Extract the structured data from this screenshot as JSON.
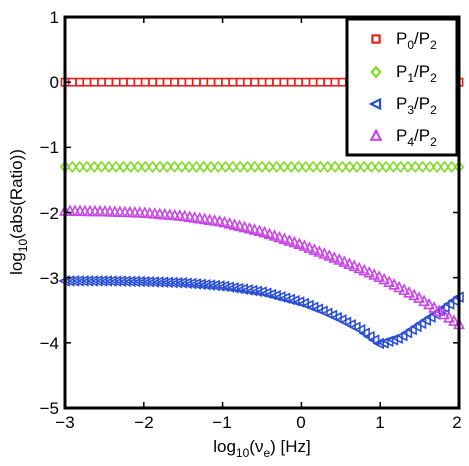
{
  "chart_data": {
    "type": "scatter",
    "xlabel": {
      "base": "log",
      "sub": "10",
      "open": "(ν",
      "sub2": "e",
      "close": ") [Hz]"
    },
    "ylabel": {
      "base": "log",
      "sub": "10",
      "rest": "(abs(Ratio))"
    },
    "xlim": [
      -3,
      2
    ],
    "ylim": [
      -5,
      1
    ],
    "x_ticks": [
      -3,
      -2,
      -1,
      0,
      1,
      2
    ],
    "y_ticks": [
      -5,
      -4,
      -3,
      -2,
      -1,
      0,
      1
    ],
    "x_tick_labels": [
      "−3",
      "−2",
      "−1",
      "0",
      "1",
      "2"
    ],
    "y_tick_labels": [
      "−5",
      "−4",
      "−3",
      "−2",
      "−1",
      "0",
      "1"
    ],
    "grid": false,
    "legend_position": "top-right",
    "series": [
      {
        "name": "P0/P2",
        "label": {
          "a": "P",
          "asub": "0",
          "slash": "/P",
          "bsub": "2"
        },
        "color": "#e8201c",
        "marker": "square",
        "x": [
          -3.0,
          -2.5,
          -2.0,
          -1.5,
          -1.0,
          -0.5,
          0.0,
          0.5,
          1.0,
          1.5,
          2.0
        ],
        "y": [
          0.0,
          0.0,
          0.0,
          0.0,
          0.0,
          0.0,
          0.0,
          0.0,
          0.0,
          0.0,
          0.0
        ]
      },
      {
        "name": "P1/P2",
        "label": {
          "a": "P",
          "asub": "1",
          "slash": "/P",
          "bsub": "2"
        },
        "color": "#7ddc1f",
        "marker": "diamond",
        "x": [
          -3.0,
          -2.5,
          -2.0,
          -1.5,
          -1.0,
          -0.5,
          0.0,
          0.5,
          1.0,
          1.5,
          2.0
        ],
        "y": [
          -1.3,
          -1.3,
          -1.3,
          -1.3,
          -1.3,
          -1.3,
          -1.3,
          -1.3,
          -1.3,
          -1.3,
          -1.3
        ]
      },
      {
        "name": "P3/P2",
        "label": {
          "a": "P",
          "asub": "3",
          "slash": "/P",
          "bsub": "2"
        },
        "color": "#2a4fd6",
        "marker": "triangle-left",
        "x": [
          -3.0,
          -2.5,
          -2.0,
          -1.5,
          -1.0,
          -0.5,
          0.0,
          0.25,
          0.5,
          0.75,
          1.0,
          1.25,
          1.5,
          1.75,
          2.0
        ],
        "y": [
          -3.05,
          -3.05,
          -3.06,
          -3.08,
          -3.13,
          -3.22,
          -3.38,
          -3.5,
          -3.64,
          -3.8,
          -4.02,
          -3.92,
          -3.72,
          -3.52,
          -3.3
        ]
      },
      {
        "name": "P4/P2",
        "label": {
          "a": "P",
          "asub": "4",
          "slash": "/P",
          "bsub": "2"
        },
        "color": "#c945e8",
        "marker": "triangle-up",
        "x": [
          -3.0,
          -2.5,
          -2.0,
          -1.5,
          -1.0,
          -0.5,
          0.0,
          0.5,
          1.0,
          1.5,
          2.0
        ],
        "y": [
          -1.98,
          -1.99,
          -2.01,
          -2.06,
          -2.15,
          -2.3,
          -2.5,
          -2.74,
          -3.0,
          -3.32,
          -3.72
        ]
      }
    ]
  }
}
